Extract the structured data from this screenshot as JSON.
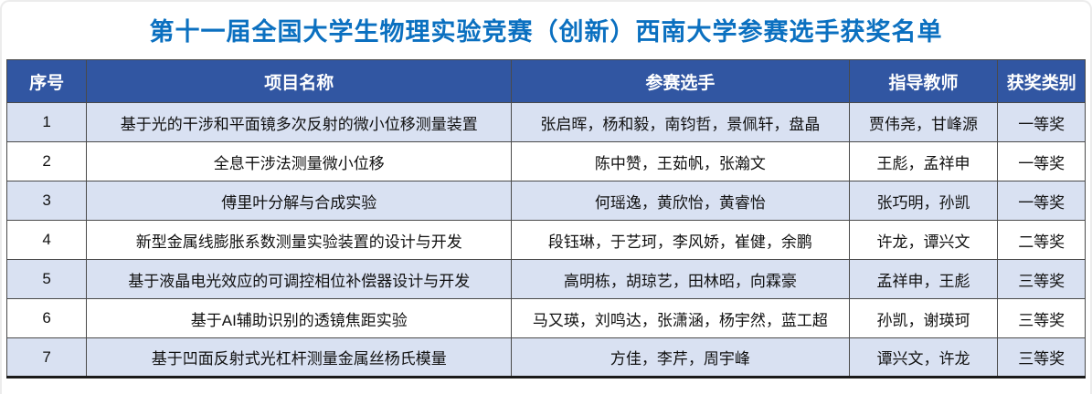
{
  "title": "第十一届全国大学生物理实验竞赛（创新）西南大学参赛选手获奖名单",
  "colors": {
    "title": "#0b70c0",
    "header_bg": "#3156a2",
    "header_text": "#ffffff",
    "row_alt_bg": "#d9e1f2"
  },
  "table": {
    "columns": [
      "序号",
      "项目名称",
      "参赛选手",
      "指导教师",
      "获奖类别"
    ],
    "rows": [
      [
        "1",
        "基于光的干涉和平面镜多次反射的微小位移测量装置",
        "张启晖，杨和毅，南钧哲，景佩轩，盘晶",
        "贾伟尧，甘峰源",
        "一等奖"
      ],
      [
        "2",
        "全息干涉法测量微小位移",
        "陈中赞，王茹帆，张瀚文",
        "王彪，孟祥申",
        "一等奖"
      ],
      [
        "3",
        "傅里叶分解与合成实验",
        "何瑶逸，黄欣怡，黄睿怡",
        "张巧明，孙凯",
        "一等奖"
      ],
      [
        "4",
        "新型金属线膨胀系数测量实验装置的设计与开发",
        "段钰琳，于艺珂，李风娇，崔健，余鹏",
        "许龙，谭兴文",
        "二等奖"
      ],
      [
        "5",
        "基于液晶电光效应的可调控相位补偿器设计与开发",
        "高明栋，胡琼艺，田林昭，向霖豪",
        "孟祥申，王彪",
        "三等奖"
      ],
      [
        "6",
        "基于AI辅助识别的透镜焦距实验",
        "马又瑛，刘鸣达，张潇涵，杨宇然，蓝工超",
        "孙凯，谢瑛珂",
        "三等奖"
      ],
      [
        "7",
        "基于凹面反射式光杠杆测量金属丝杨氏模量",
        "方佳，李芹，周宇峰",
        "谭兴文，许龙",
        "三等奖"
      ]
    ]
  }
}
